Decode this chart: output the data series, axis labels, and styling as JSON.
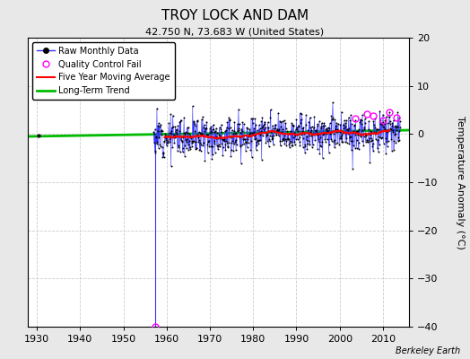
{
  "title": "TROY LOCK AND DAM",
  "subtitle": "42.750 N, 73.683 W (United States)",
  "ylabel": "Temperature Anomaly (°C)",
  "watermark": "Berkeley Earth",
  "xlim": [
    1928,
    2016
  ],
  "ylim": [
    -40,
    20
  ],
  "yticks": [
    -40,
    -30,
    -20,
    -10,
    0,
    10,
    20
  ],
  "xticks": [
    1930,
    1940,
    1950,
    1960,
    1970,
    1980,
    1990,
    2000,
    2010
  ],
  "data_start_year": 1957,
  "data_end_year": 2014,
  "spike_year": 1957.42,
  "spike_bottom": -40,
  "early_point_x": 1930.5,
  "early_point_y": -0.3,
  "background_color": "#e8e8e8",
  "plot_bg_color": "#ffffff",
  "raw_line_color": "#3333ff",
  "raw_marker_color": "#000000",
  "qc_fail_color": "#ff00ff",
  "moving_avg_color": "#ff0000",
  "trend_color": "#00bb00",
  "grid_color": "#cccccc",
  "title_fontsize": 11,
  "subtitle_fontsize": 8,
  "tick_fontsize": 8,
  "ylabel_fontsize": 8,
  "legend_fontsize": 7,
  "watermark_fontsize": 7,
  "noise_std": 2.0,
  "seed": 12
}
